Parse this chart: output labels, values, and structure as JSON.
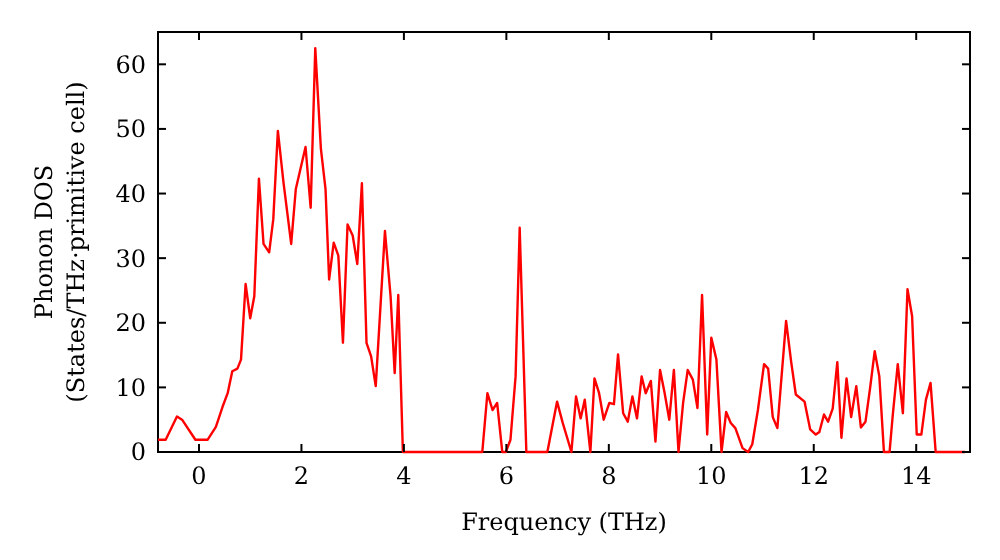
{
  "chart_data": {
    "type": "line",
    "xlabel": "Frequency (THz)",
    "ylabel": "Phonon DOS\n(States/THz·primitive cell)",
    "xlim": [
      -0.8,
      15.05
    ],
    "ylim": [
      0,
      65
    ],
    "xticks": [
      0,
      2,
      4,
      6,
      8,
      10,
      12,
      14
    ],
    "yticks": [
      0,
      10,
      20,
      30,
      40,
      50,
      60
    ],
    "grid": false,
    "marker": "none",
    "line_style": "solid",
    "series": [
      {
        "color": "#ff0000",
        "x": [
          -0.8,
          -0.65,
          -0.43,
          -0.33,
          -0.07,
          0.17,
          0.33,
          0.46,
          0.56,
          0.65,
          0.75,
          0.82,
          0.91,
          1.0,
          1.08,
          1.17,
          1.26,
          1.37,
          1.45,
          1.54,
          1.65,
          1.8,
          1.89,
          2.08,
          2.18,
          2.27,
          2.38,
          2.47,
          2.54,
          2.63,
          2.72,
          2.81,
          2.9,
          3.0,
          3.09,
          3.18,
          3.27,
          3.36,
          3.45,
          3.63,
          3.74,
          3.82,
          3.89,
          3.98,
          5.53,
          5.63,
          5.73,
          5.82,
          5.92,
          5.99,
          6.08,
          6.18,
          6.26,
          6.39,
          6.8,
          6.99,
          7.1,
          7.27,
          7.36,
          7.45,
          7.53,
          7.64,
          7.72,
          7.81,
          7.9,
          8.01,
          8.1,
          8.18,
          8.28,
          8.37,
          8.46,
          8.55,
          8.64,
          8.72,
          8.82,
          8.91,
          9.0,
          9.09,
          9.18,
          9.27,
          9.36,
          9.45,
          9.54,
          9.64,
          9.73,
          9.82,
          9.92,
          10.0,
          10.1,
          10.2,
          10.29,
          10.38,
          10.47,
          10.61,
          10.72,
          10.8,
          10.91,
          11.03,
          11.11,
          11.2,
          11.29,
          11.46,
          11.56,
          11.65,
          11.82,
          11.93,
          12.04,
          12.11,
          12.2,
          12.28,
          12.37,
          12.46,
          12.54,
          12.64,
          12.73,
          12.83,
          12.92,
          13.01,
          13.1,
          13.19,
          13.28,
          13.37,
          13.48,
          13.54,
          13.64,
          13.74,
          13.83,
          13.92,
          14.01,
          14.1,
          14.19,
          14.28,
          14.38,
          14.95
        ],
        "values": [
          1.9,
          1.9,
          5.5,
          5,
          1.9,
          1.9,
          3.9,
          7,
          9.1,
          12.5,
          12.9,
          14.3,
          26,
          20.7,
          24.1,
          42.3,
          32.2,
          30.9,
          36,
          49.7,
          41.7,
          32.2,
          40.7,
          47.2,
          37.8,
          62.5,
          46.9,
          40.7,
          26.7,
          32.4,
          30.4,
          16.9,
          35.2,
          33.5,
          29.1,
          41.6,
          16.9,
          14.8,
          10.2,
          34.2,
          24.1,
          12.2,
          24.3,
          0,
          0,
          9.1,
          6.5,
          7.6,
          0,
          0,
          1.9,
          11.7,
          34.7,
          0,
          0,
          7.8,
          4.5,
          0,
          8.6,
          5.2,
          8.1,
          0,
          11.4,
          9.1,
          5,
          7.6,
          7.4,
          15.1,
          6,
          4.7,
          8.6,
          5.2,
          11.7,
          9.1,
          11,
          1.6,
          12.7,
          9.1,
          5,
          12.7,
          0,
          7.6,
          12.7,
          11.2,
          6.8,
          24.3,
          2.7,
          17.7,
          14.3,
          0,
          6.2,
          4.5,
          3.7,
          0.6,
          0,
          1.2,
          6.5,
          13.6,
          12.9,
          5.4,
          3.7,
          20.3,
          13.9,
          8.9,
          7.8,
          3.5,
          2.7,
          3.1,
          5.8,
          4.7,
          6.7,
          13.9,
          2.2,
          11.4,
          5.4,
          10.2,
          3.8,
          4.7,
          9.9,
          15.6,
          11.7,
          0,
          0,
          5.5,
          13.6,
          6,
          25.2,
          21,
          2.7,
          2.7,
          8.1,
          10.7,
          0,
          0
        ]
      }
    ]
  }
}
